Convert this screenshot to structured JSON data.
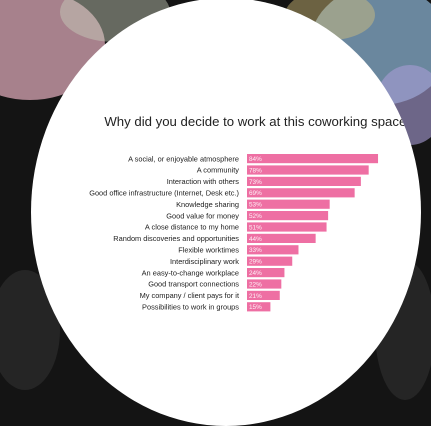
{
  "colors": {
    "bar": "#ee6fa3",
    "text": "#222222",
    "background": "#ffffff"
  },
  "chart_data": {
    "type": "bar",
    "orientation": "horizontal",
    "title": "Why did you decide to work at this coworking space?",
    "subtitle": "",
    "categories": [
      "A social, or enjoyable atmosphere",
      "A community",
      "Interaction with others",
      "Good office infrastructure (Internet, Desk etc.)",
      "Knowledge sharing",
      "Good value for money",
      "A close distance to my home",
      "Random discoveries and opportunities",
      "Flexible worktimes",
      "Interdisciplinary work",
      "An easy-to-change workplace",
      "Good transport connections",
      "My company / client pays for it",
      "Possibilities to work in groups"
    ],
    "values": [
      84,
      78,
      73,
      69,
      53,
      52,
      51,
      44,
      33,
      29,
      24,
      22,
      21,
      15
    ],
    "value_suffix": "%",
    "xlim": [
      0,
      100
    ],
    "grid": false,
    "legend": "none"
  }
}
